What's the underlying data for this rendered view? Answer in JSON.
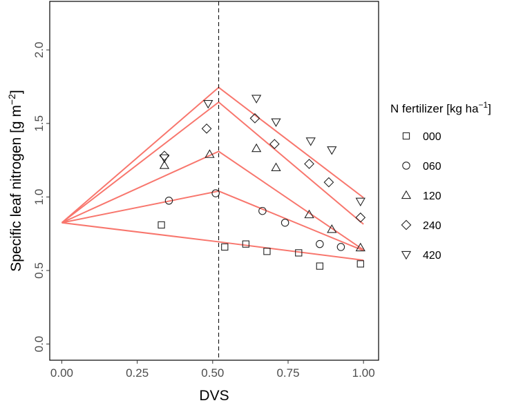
{
  "chart_data": {
    "type": "scatter",
    "title": "",
    "xlabel": "DVS",
    "ylabel": "Specific leaf nitrogen [g m",
    "ylabel_sup": "−2",
    "ylabel_end": "]",
    "xlim": [
      -0.04,
      1.05
    ],
    "ylim": [
      -0.11,
      2.33
    ],
    "xticks": [
      0.0,
      0.25,
      0.5,
      0.75,
      1.0
    ],
    "xtick_labels": [
      "0.00",
      "0.25",
      "0.50",
      "0.75",
      "1.00"
    ],
    "yticks": [
      0.0,
      0.5,
      1.0,
      1.5,
      2.0
    ],
    "ytick_labels": [
      "0.0",
      "0.5",
      "1.0",
      "1.5",
      "2.0"
    ],
    "grid": false,
    "vline": {
      "x": 0.52,
      "style": "dashed",
      "color": "#000000"
    },
    "legend": {
      "title": "N fertilizer [kg ha",
      "title_sup": "−1",
      "title_end": "]",
      "position": "right"
    },
    "line_color": "#F8766D",
    "series": [
      {
        "name": "000",
        "marker": "square",
        "points": [
          [
            0.33,
            0.81
          ],
          [
            0.54,
            0.66
          ],
          [
            0.61,
            0.68
          ],
          [
            0.68,
            0.63
          ],
          [
            0.785,
            0.62
          ],
          [
            0.855,
            0.53
          ],
          [
            0.99,
            0.545
          ]
        ],
        "fit": [
          [
            0.0,
            0.825
          ],
          [
            0.52,
            0.695
          ],
          [
            1.0,
            0.57
          ]
        ]
      },
      {
        "name": "060",
        "marker": "circle",
        "points": [
          [
            0.355,
            0.975
          ],
          [
            0.51,
            1.025
          ],
          [
            0.665,
            0.905
          ],
          [
            0.74,
            0.825
          ],
          [
            0.855,
            0.68
          ],
          [
            0.925,
            0.66
          ]
        ],
        "fit": [
          [
            0.0,
            0.825
          ],
          [
            0.52,
            1.04
          ],
          [
            1.0,
            0.635
          ]
        ]
      },
      {
        "name": "120",
        "marker": "triangle-up",
        "points": [
          [
            0.34,
            1.215
          ],
          [
            0.49,
            1.29
          ],
          [
            0.645,
            1.33
          ],
          [
            0.71,
            1.2
          ],
          [
            0.82,
            0.88
          ],
          [
            0.895,
            0.78
          ],
          [
            0.99,
            0.655
          ]
        ],
        "fit": [
          [
            0.0,
            0.825
          ],
          [
            0.52,
            1.31
          ],
          [
            1.0,
            0.64
          ]
        ]
      },
      {
        "name": "240",
        "marker": "diamond",
        "points": [
          [
            0.34,
            1.28
          ],
          [
            0.48,
            1.465
          ],
          [
            0.64,
            1.535
          ],
          [
            0.705,
            1.36
          ],
          [
            0.82,
            1.225
          ],
          [
            0.885,
            1.1
          ],
          [
            0.99,
            0.86
          ]
        ],
        "fit": [
          [
            0.0,
            0.825
          ],
          [
            0.52,
            1.645
          ],
          [
            1.0,
            0.815
          ]
        ]
      },
      {
        "name": "420",
        "marker": "triangle-down",
        "points": [
          [
            0.34,
            1.265
          ],
          [
            0.485,
            1.635
          ],
          [
            0.645,
            1.67
          ],
          [
            0.71,
            1.51
          ],
          [
            0.825,
            1.38
          ],
          [
            0.895,
            1.32
          ],
          [
            0.99,
            0.97
          ]
        ],
        "fit": [
          [
            0.0,
            0.825
          ],
          [
            0.52,
            1.745
          ],
          [
            1.0,
            0.995
          ]
        ]
      }
    ]
  }
}
